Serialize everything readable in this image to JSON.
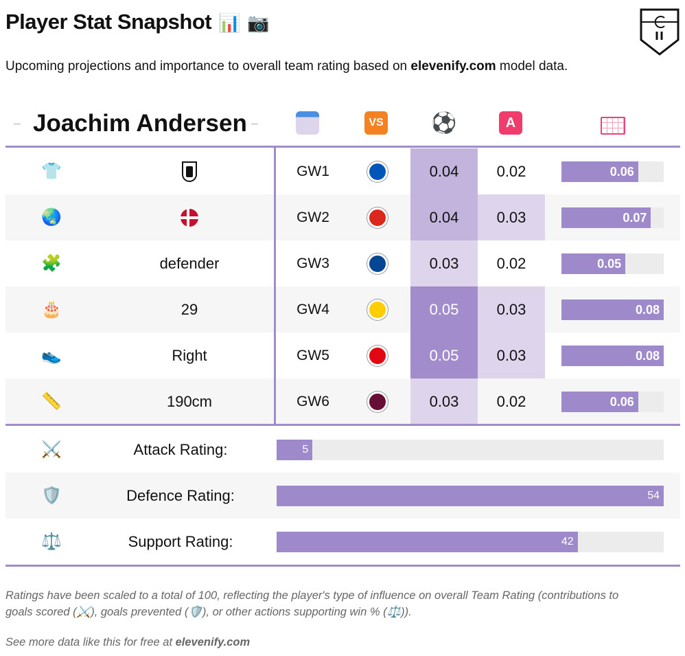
{
  "header": {
    "title": "Player Stat Snapshot",
    "title_icons": [
      "bar-chart-icon",
      "camera-icon"
    ],
    "subtitle_pre": "Upcoming projections and importance to overall team rating based on ",
    "subtitle_brand": "elevenify.com",
    "subtitle_post": " model data."
  },
  "player": {
    "name": "Joachim Andersen",
    "column_icons": [
      "calendar-icon",
      "vs-icon",
      "soccer-ball-icon",
      "assist-a-icon",
      "goal-net-icon"
    ],
    "column_icon_text": {
      "vs": "VS",
      "a": "A"
    }
  },
  "colors": {
    "accent": "#9e8acb",
    "xg_high": "#a28ccc",
    "xg_mid": "#c2b4dc",
    "xg_low": "#ded5ec"
  },
  "rows": [
    {
      "icon": "shirt-icon",
      "glyph": "👕",
      "value": "",
      "value_icon": "fulham-crest",
      "gw": "GW1",
      "team_color": "#0057b8",
      "xg": "0.04",
      "xa": "0.02",
      "total": "0.06",
      "total_num": 0.06
    },
    {
      "icon": "globe-icon",
      "glyph": "🌏",
      "value": "",
      "value_icon": "denmark-flag",
      "gw": "GW2",
      "team_color": "#da291c",
      "xg": "0.04",
      "xa": "0.03",
      "total": "0.07",
      "total_num": 0.07
    },
    {
      "icon": "puzzle-icon",
      "glyph": "🧩",
      "value": "defender",
      "gw": "GW3",
      "team_color": "#034694",
      "xg": "0.03",
      "xa": "0.02",
      "total": "0.05",
      "total_num": 0.05
    },
    {
      "icon": "cake-icon",
      "glyph": "🎂",
      "value": "29",
      "gw": "GW4",
      "team_color": "#ffcd00",
      "xg": "0.05",
      "xa": "0.03",
      "total": "0.08",
      "total_num": 0.08
    },
    {
      "icon": "shoe-icon",
      "glyph": "👟",
      "value": "Right",
      "gw": "GW5",
      "team_color": "#e30613",
      "xg": "0.05",
      "xa": "0.03",
      "total": "0.08",
      "total_num": 0.08
    },
    {
      "icon": "ruler-icon",
      "glyph": "📏",
      "value": "190cm",
      "gw": "GW6",
      "team_color": "#670e36",
      "xg": "0.03",
      "xa": "0.02",
      "total": "0.06",
      "total_num": 0.06
    }
  ],
  "total_max": 0.08,
  "ratings": [
    {
      "icon": "crossed-swords-icon",
      "glyph": "⚔️",
      "label": "Attack Rating:",
      "value": "5",
      "num": 5
    },
    {
      "icon": "shield-icon",
      "glyph": "🛡️",
      "label": "Defence Rating:",
      "value": "54",
      "num": 54
    },
    {
      "icon": "scales-icon",
      "glyph": "⚖️",
      "label": "Support Rating:",
      "value": "42",
      "num": 42
    }
  ],
  "rating_max": 54,
  "footer": {
    "note_1": "Ratings have been scaled to a total of 100, reflecting the player's type of influence on overall Team Rating (contributions to",
    "note_2a": "goals scored (",
    "note_2b": "), goals prevented (",
    "note_2c": "), or other actions supporting win % (",
    "note_2d": ")).",
    "more_pre": "See more data like this for free at ",
    "more_brand": "elevenify.com"
  }
}
